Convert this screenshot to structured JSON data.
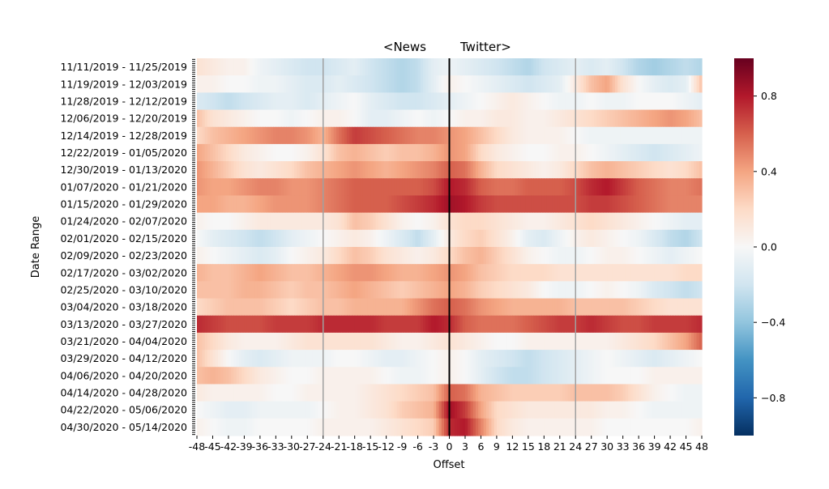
{
  "chart_data": {
    "type": "heatmap",
    "header": {
      "left": "<News",
      "right": "Twitter>"
    },
    "xlabel": "Offset",
    "ylabel": "Date Range",
    "x_range": [
      -48,
      48
    ],
    "x_step": 3,
    "x_tick_labels": [
      "-48",
      "-45",
      "-42",
      "-39",
      "-36",
      "-33",
      "-30",
      "-27",
      "-24",
      "-21",
      "-18",
      "-15",
      "-12",
      "-9",
      "-6",
      "-3",
      "0",
      "3",
      "6",
      "9",
      "12",
      "15",
      "18",
      "21",
      "24",
      "27",
      "30",
      "33",
      "36",
      "39",
      "42",
      "45",
      "48"
    ],
    "y_tick_labels": [
      "11/11/2019 - 11/25/2019",
      "11/19/2019 - 12/03/2019",
      "11/28/2019 - 12/12/2019",
      "12/06/2019 - 12/20/2019",
      "12/14/2019 - 12/28/2019",
      "12/22/2019 - 01/05/2020",
      "12/30/2019 - 01/13/2020",
      "01/07/2020 - 01/21/2020",
      "01/15/2020 - 01/29/2020",
      "01/24/2020 - 02/07/2020",
      "02/01/2020 - 02/15/2020",
      "02/09/2020 - 02/23/2020",
      "02/17/2020 - 03/02/2020",
      "02/25/2020 - 03/10/2020",
      "03/04/2020 - 03/18/2020",
      "03/13/2020 - 03/27/2020",
      "03/21/2020 - 04/04/2020",
      "03/29/2020 - 04/12/2020",
      "04/06/2020 - 04/20/2020",
      "04/14/2020 - 04/28/2020",
      "04/22/2020 - 05/06/2020",
      "04/30/2020 - 05/14/2020"
    ],
    "reference_lines": [
      {
        "x": 0,
        "color": "#000000"
      },
      {
        "x": -24,
        "color": "#a0a0a0"
      },
      {
        "x": 24,
        "color": "#a0a0a0"
      }
    ],
    "colorscale": "RdBu_r",
    "value_range": [
      -1,
      1
    ],
    "colorbar_ticks": [
      "0.8",
      "0.4",
      "0.0",
      "−0.4",
      "−0.8"
    ],
    "colorbar_tick_values": [
      0.8,
      0.4,
      0.0,
      -0.4,
      -0.8
    ],
    "row_values": [
      [
        0.15,
        0.1,
        0.05,
        0.05,
        -0.05,
        -0.1,
        -0.15,
        -0.2,
        -0.2,
        -0.15,
        -0.1,
        -0.2,
        -0.25,
        -0.3,
        -0.25,
        -0.1,
        -0.05,
        -0.1,
        -0.15,
        -0.2,
        -0.25,
        -0.3,
        -0.2,
        -0.15,
        -0.1,
        -0.15,
        -0.1,
        -0.2,
        -0.3,
        -0.35,
        -0.3,
        -0.25,
        -0.3
      ],
      [
        0.05,
        0.05,
        0.0,
        0.0,
        -0.05,
        -0.05,
        -0.1,
        -0.15,
        -0.15,
        -0.1,
        -0.15,
        -0.2,
        -0.25,
        -0.3,
        -0.25,
        -0.1,
        0.05,
        0.0,
        -0.05,
        -0.1,
        -0.15,
        -0.2,
        -0.15,
        -0.1,
        0.1,
        0.3,
        0.4,
        0.15,
        0.0,
        -0.1,
        -0.15,
        -0.1,
        0.3
      ],
      [
        -0.15,
        -0.2,
        -0.25,
        -0.2,
        -0.15,
        -0.1,
        -0.1,
        -0.15,
        -0.1,
        -0.05,
        0.0,
        -0.1,
        -0.15,
        -0.2,
        -0.2,
        -0.15,
        -0.1,
        -0.05,
        0.0,
        0.05,
        0.1,
        0.05,
        0.0,
        -0.05,
        -0.05,
        0.0,
        -0.05,
        -0.05,
        0.0,
        0.0,
        0.0,
        -0.05,
        -0.1
      ],
      [
        0.3,
        0.15,
        0.1,
        0.05,
        0.0,
        0.0,
        -0.05,
        0.0,
        0.05,
        0.05,
        0.0,
        -0.1,
        -0.1,
        -0.05,
        0.0,
        -0.05,
        0.0,
        0.05,
        0.05,
        0.1,
        0.1,
        0.05,
        0.05,
        0.1,
        0.15,
        0.2,
        0.25,
        0.3,
        0.35,
        0.4,
        0.45,
        0.4,
        0.3
      ],
      [
        0.2,
        0.3,
        0.35,
        0.4,
        0.45,
        0.5,
        0.5,
        0.45,
        0.35,
        0.55,
        0.7,
        0.65,
        0.6,
        0.55,
        0.5,
        0.5,
        0.45,
        0.4,
        0.3,
        0.2,
        0.1,
        0.05,
        0.05,
        0.05,
        0.0,
        -0.05,
        -0.05,
        -0.05,
        -0.05,
        -0.05,
        -0.05,
        -0.05,
        -0.05
      ],
      [
        0.4,
        0.3,
        0.2,
        0.1,
        0.05,
        0.0,
        0.0,
        0.05,
        0.15,
        0.3,
        0.35,
        0.3,
        0.25,
        0.3,
        0.3,
        0.35,
        0.45,
        0.4,
        0.2,
        0.1,
        0.05,
        0.0,
        0.0,
        0.05,
        0.05,
        0.0,
        -0.05,
        -0.1,
        -0.15,
        -0.2,
        -0.15,
        -0.1,
        -0.05
      ],
      [
        0.45,
        0.35,
        0.25,
        0.15,
        0.1,
        0.15,
        0.2,
        0.3,
        0.35,
        0.4,
        0.45,
        0.4,
        0.35,
        0.4,
        0.45,
        0.5,
        0.6,
        0.55,
        0.35,
        0.2,
        0.15,
        0.1,
        0.05,
        0.1,
        0.2,
        0.3,
        0.35,
        0.3,
        0.25,
        0.2,
        0.15,
        0.2,
        0.3
      ],
      [
        0.45,
        0.4,
        0.4,
        0.45,
        0.5,
        0.5,
        0.45,
        0.45,
        0.5,
        0.55,
        0.6,
        0.6,
        0.6,
        0.6,
        0.6,
        0.65,
        0.8,
        0.75,
        0.6,
        0.55,
        0.55,
        0.6,
        0.6,
        0.6,
        0.65,
        0.75,
        0.8,
        0.7,
        0.6,
        0.55,
        0.5,
        0.5,
        0.55
      ],
      [
        0.4,
        0.4,
        0.35,
        0.35,
        0.4,
        0.45,
        0.45,
        0.45,
        0.5,
        0.55,
        0.6,
        0.6,
        0.6,
        0.65,
        0.7,
        0.75,
        0.85,
        0.8,
        0.7,
        0.65,
        0.65,
        0.65,
        0.65,
        0.65,
        0.65,
        0.7,
        0.7,
        0.65,
        0.6,
        0.55,
        0.5,
        0.5,
        0.5
      ],
      [
        0.05,
        0.0,
        0.0,
        0.05,
        0.1,
        0.1,
        0.1,
        0.1,
        0.1,
        0.15,
        0.3,
        0.25,
        0.15,
        0.05,
        0.0,
        0.05,
        0.15,
        0.2,
        0.2,
        0.15,
        0.1,
        0.05,
        0.05,
        0.1,
        0.15,
        0.2,
        0.15,
        0.1,
        0.05,
        0.0,
        -0.05,
        -0.1,
        -0.1
      ],
      [
        0.0,
        -0.1,
        -0.15,
        -0.2,
        -0.25,
        -0.2,
        -0.1,
        -0.05,
        0.0,
        0.05,
        0.1,
        0.05,
        -0.05,
        -0.15,
        -0.25,
        -0.1,
        0.1,
        0.2,
        0.25,
        0.15,
        0.05,
        -0.1,
        -0.15,
        -0.05,
        0.05,
        0.1,
        0.05,
        0.0,
        -0.05,
        -0.15,
        -0.25,
        -0.3,
        -0.2
      ],
      [
        0.05,
        0.0,
        -0.05,
        -0.1,
        -0.15,
        -0.1,
        0.0,
        0.05,
        0.1,
        0.2,
        0.3,
        0.25,
        0.15,
        0.1,
        0.05,
        0.1,
        0.2,
        0.3,
        0.35,
        0.25,
        0.15,
        0.05,
        0.0,
        -0.05,
        -0.05,
        0.0,
        0.05,
        0.05,
        0.0,
        -0.05,
        -0.1,
        -0.05,
        0.0
      ],
      [
        0.35,
        0.3,
        0.3,
        0.35,
        0.4,
        0.35,
        0.3,
        0.3,
        0.35,
        0.4,
        0.45,
        0.45,
        0.4,
        0.35,
        0.35,
        0.4,
        0.45,
        0.4,
        0.3,
        0.25,
        0.2,
        0.2,
        0.2,
        0.15,
        0.15,
        0.15,
        0.15,
        0.15,
        0.15,
        0.15,
        0.15,
        0.2,
        0.2
      ],
      [
        0.3,
        0.3,
        0.3,
        0.35,
        0.35,
        0.3,
        0.25,
        0.3,
        0.3,
        0.35,
        0.4,
        0.35,
        0.3,
        0.25,
        0.3,
        0.35,
        0.4,
        0.35,
        0.25,
        0.2,
        0.15,
        0.1,
        0.0,
        -0.05,
        -0.05,
        0.0,
        0.05,
        0.0,
        -0.05,
        -0.15,
        -0.2,
        -0.25,
        -0.2
      ],
      [
        0.2,
        0.25,
        0.3,
        0.3,
        0.3,
        0.25,
        0.2,
        0.25,
        0.3,
        0.3,
        0.35,
        0.35,
        0.35,
        0.35,
        0.45,
        0.55,
        0.6,
        0.55,
        0.45,
        0.4,
        0.35,
        0.35,
        0.35,
        0.35,
        0.3,
        0.3,
        0.3,
        0.3,
        0.25,
        0.2,
        0.15,
        0.15,
        0.15
      ],
      [
        0.75,
        0.7,
        0.65,
        0.65,
        0.65,
        0.7,
        0.7,
        0.7,
        0.75,
        0.75,
        0.75,
        0.75,
        0.7,
        0.7,
        0.7,
        0.8,
        0.75,
        0.6,
        0.55,
        0.55,
        0.55,
        0.6,
        0.65,
        0.7,
        0.7,
        0.75,
        0.7,
        0.65,
        0.65,
        0.7,
        0.7,
        0.7,
        0.75
      ],
      [
        0.3,
        0.2,
        0.1,
        0.05,
        0.05,
        0.05,
        0.1,
        0.15,
        0.15,
        0.15,
        0.15,
        0.15,
        0.1,
        0.05,
        0.05,
        0.1,
        0.15,
        0.1,
        0.05,
        0.0,
        0.0,
        0.05,
        0.05,
        0.05,
        0.05,
        0.05,
        0.05,
        0.1,
        0.15,
        0.2,
        0.3,
        0.4,
        0.6
      ],
      [
        0.3,
        0.15,
        0.0,
        -0.1,
        -0.15,
        -0.1,
        -0.05,
        -0.05,
        -0.05,
        0.0,
        0.0,
        -0.05,
        -0.1,
        -0.1,
        -0.05,
        0.0,
        0.05,
        0.0,
        -0.1,
        -0.15,
        -0.2,
        -0.25,
        -0.2,
        -0.15,
        -0.1,
        -0.05,
        0.0,
        -0.05,
        -0.1,
        -0.15,
        -0.1,
        -0.05,
        0.0
      ],
      [
        0.3,
        0.35,
        0.3,
        0.2,
        0.1,
        0.05,
        0.0,
        0.0,
        0.05,
        0.05,
        0.05,
        0.05,
        0.0,
        -0.05,
        -0.05,
        0.0,
        0.05,
        0.0,
        -0.1,
        -0.2,
        -0.25,
        -0.25,
        -0.2,
        -0.15,
        -0.1,
        -0.05,
        0.0,
        0.0,
        0.0,
        0.05,
        0.05,
        0.05,
        0.05
      ],
      [
        0.1,
        0.05,
        0.05,
        0.05,
        0.05,
        0.0,
        0.0,
        0.05,
        0.05,
        0.05,
        0.05,
        0.1,
        0.15,
        0.2,
        0.25,
        0.3,
        0.6,
        0.55,
        0.35,
        0.3,
        0.25,
        0.25,
        0.25,
        0.25,
        0.3,
        0.3,
        0.3,
        0.25,
        0.15,
        0.05,
        0.0,
        -0.05,
        -0.05
      ],
      [
        0.0,
        -0.05,
        -0.1,
        -0.1,
        -0.05,
        -0.05,
        -0.05,
        -0.05,
        0.0,
        0.05,
        0.05,
        0.1,
        0.15,
        0.25,
        0.3,
        0.35,
        0.85,
        0.7,
        0.4,
        0.2,
        0.15,
        0.1,
        0.1,
        0.1,
        0.1,
        0.1,
        0.05,
        0.05,
        0.0,
        -0.05,
        -0.05,
        -0.05,
        -0.05
      ],
      [
        0.05,
        0.0,
        -0.05,
        -0.05,
        0.0,
        0.0,
        0.0,
        0.0,
        0.05,
        0.05,
        0.05,
        0.05,
        0.1,
        0.15,
        0.2,
        0.25,
        0.75,
        0.8,
        0.5,
        0.2,
        0.1,
        0.05,
        0.05,
        0.05,
        0.05,
        0.05,
        0.0,
        0.0,
        0.0,
        0.0,
        0.0,
        0.0,
        0.05
      ]
    ]
  }
}
